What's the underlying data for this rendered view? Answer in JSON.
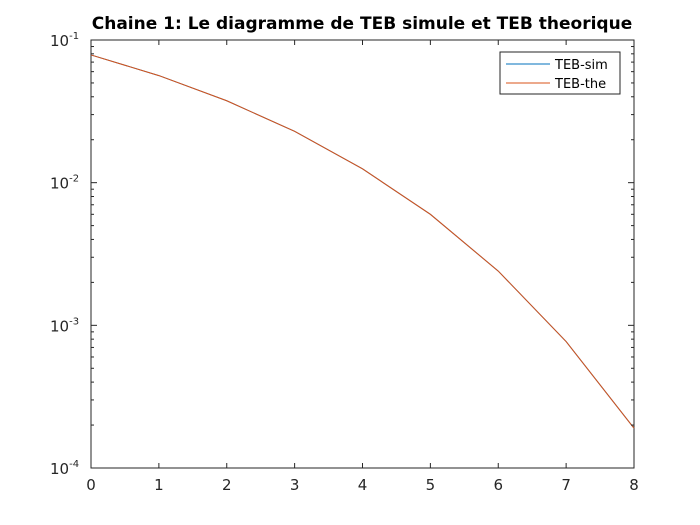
{
  "chart_data": {
    "type": "line",
    "title": "Chaine 1: Le diagramme de TEB simule et TEB theorique",
    "xlabel": "",
    "ylabel": "",
    "xlim": [
      0,
      8
    ],
    "ylim": [
      0.0001,
      0.1
    ],
    "yscale": "log",
    "grid": false,
    "legend_position": "top-right",
    "x_ticks": [
      0,
      1,
      2,
      3,
      4,
      5,
      6,
      7,
      8
    ],
    "y_ticks": [
      {
        "base": "10",
        "exp": "-1",
        "value": 0.1
      },
      {
        "base": "10",
        "exp": "-2",
        "value": 0.01
      },
      {
        "base": "10",
        "exp": "-3",
        "value": 0.001
      },
      {
        "base": "10",
        "exp": "-4",
        "value": 0.0001
      }
    ],
    "x": [
      0,
      1,
      2,
      3,
      4,
      5,
      6,
      7,
      8
    ],
    "series": [
      {
        "name": "TEB-sim",
        "color": "#0072BD",
        "values": [
          0.0786,
          0.0563,
          0.0375,
          0.0229,
          0.0125,
          0.006,
          0.0024,
          0.00077,
          0.00019
        ]
      },
      {
        "name": "TEB-the",
        "color": "#D95319",
        "values": [
          0.0786,
          0.0563,
          0.0375,
          0.0229,
          0.0125,
          0.006,
          0.0024,
          0.00077,
          0.00019
        ]
      }
    ]
  }
}
